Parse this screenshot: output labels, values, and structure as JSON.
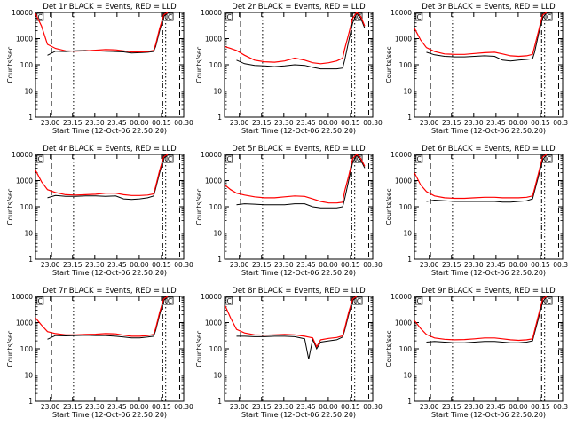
{
  "page": {
    "background": "#ffffff",
    "colors": {
      "events": "#000000",
      "lld": "#ff0000"
    }
  },
  "shared_axes": {
    "ylabel": "Counts/sec",
    "xlabel": "Start Time (12-Oct-06 22:50:20)",
    "y_scale": "log",
    "ylim": [
      1,
      10000
    ],
    "y_tick_labels": [
      "1",
      "10",
      "100",
      "1000",
      "10000"
    ],
    "x_tick_labels": [
      "23:00",
      "23:15",
      "23:30",
      "23:45",
      "00:00",
      "00:15",
      "00:30"
    ]
  },
  "chart_data": [
    {
      "type": "line",
      "title": "Det 1r BLACK = Events, RED = LLD",
      "ylabel": "Counts/sec",
      "xlabel": "Start Time (12-Oct-06 22:50:20)",
      "y_scale": "log",
      "ylim": [
        1,
        10000
      ],
      "x": [
        0,
        3,
        6,
        10,
        15,
        20,
        25,
        30,
        35,
        40,
        44,
        48,
        52,
        56,
        59,
        60,
        62,
        64,
        66
      ],
      "series": [
        {
          "values": [
            null,
            null,
            230,
            330,
            320,
            340,
            350,
            340,
            330,
            320,
            310,
            280,
            290,
            300,
            320,
            500,
            2000,
            7000,
            10000
          ]
        },
        {
          "values": [
            9000,
            3000,
            600,
            420,
            340,
            330,
            340,
            360,
            380,
            370,
            340,
            310,
            310,
            320,
            350,
            600,
            2500,
            8000,
            10000
          ]
        }
      ],
      "annotations": [
        "C",
        "C",
        "C"
      ]
    },
    {
      "type": "line",
      "title": "Det 2r BLACK = Events, RED = LLD",
      "ylabel": "Counts/sec",
      "xlabel": "Start Time (12-Oct-06 22:50:20)",
      "y_scale": "log",
      "ylim": [
        1,
        10000
      ],
      "x": [
        0,
        3,
        6,
        10,
        15,
        20,
        25,
        30,
        35,
        40,
        44,
        48,
        52,
        56,
        59,
        60,
        62,
        64,
        66,
        68,
        70
      ],
      "series": [
        {
          "values": [
            null,
            null,
            150,
            110,
            95,
            90,
            85,
            90,
            100,
            95,
            80,
            70,
            70,
            70,
            75,
            150,
            800,
            4000,
            9000,
            6000,
            2500
          ]
        },
        {
          "values": [
            500,
            420,
            350,
            230,
            150,
            130,
            125,
            140,
            180,
            150,
            120,
            110,
            120,
            140,
            180,
            400,
            1500,
            6000,
            10000,
            7000,
            3000
          ]
        }
      ],
      "annotations": [
        "C",
        "C",
        "C"
      ]
    },
    {
      "type": "line",
      "title": "Det 3r BLACK = Events, RED = LLD",
      "ylabel": "Counts/sec",
      "xlabel": "Start Time (12-Oct-06 22:50:20)",
      "y_scale": "log",
      "ylim": [
        1,
        10000
      ],
      "x": [
        0,
        3,
        6,
        10,
        15,
        20,
        25,
        30,
        35,
        40,
        44,
        48,
        52,
        56,
        59,
        60,
        62,
        64,
        66
      ],
      "series": [
        {
          "values": [
            null,
            null,
            300,
            240,
            210,
            200,
            200,
            210,
            220,
            210,
            150,
            140,
            150,
            160,
            170,
            300,
            1500,
            6000,
            10000
          ]
        },
        {
          "values": [
            2500,
            900,
            450,
            320,
            260,
            250,
            250,
            270,
            290,
            300,
            260,
            220,
            210,
            220,
            250,
            500,
            2000,
            8000,
            10000
          ]
        }
      ],
      "annotations": [
        "C",
        "C",
        "C"
      ]
    },
    {
      "type": "line",
      "title": "Det 4r BLACK = Events, RED = LLD",
      "ylabel": "Counts/sec",
      "xlabel": "Start Time (12-Oct-06 22:50:20)",
      "y_scale": "log",
      "ylim": [
        1,
        10000
      ],
      "x": [
        0,
        3,
        6,
        10,
        15,
        20,
        25,
        30,
        35,
        40,
        44,
        48,
        52,
        56,
        59,
        60,
        62,
        64,
        66
      ],
      "series": [
        {
          "values": [
            null,
            null,
            220,
            270,
            250,
            250,
            260,
            260,
            250,
            260,
            200,
            190,
            200,
            220,
            260,
            500,
            2000,
            7000,
            10000
          ]
        },
        {
          "values": [
            2500,
            900,
            450,
            350,
            290,
            280,
            290,
            300,
            330,
            330,
            290,
            270,
            270,
            280,
            310,
            600,
            2500,
            8000,
            10000
          ]
        }
      ],
      "annotations": [
        "C",
        "C",
        "C"
      ]
    },
    {
      "type": "line",
      "title": "Det 5r BLACK = Events, RED = LLD",
      "ylabel": "Counts/sec",
      "xlabel": "Start Time (12-Oct-06 22:50:20)",
      "y_scale": "log",
      "ylim": [
        1,
        10000
      ],
      "x": [
        0,
        3,
        6,
        10,
        15,
        20,
        25,
        30,
        35,
        40,
        44,
        48,
        52,
        56,
        59,
        60,
        62,
        64,
        66,
        68,
        70
      ],
      "series": [
        {
          "values": [
            null,
            null,
            120,
            130,
            125,
            120,
            120,
            120,
            130,
            130,
            100,
            90,
            90,
            90,
            100,
            200,
            1000,
            5000,
            9000,
            6000,
            3000
          ]
        },
        {
          "values": [
            700,
            450,
            330,
            280,
            240,
            220,
            220,
            240,
            260,
            250,
            200,
            160,
            140,
            140,
            150,
            400,
            1500,
            7000,
            10000,
            7000,
            3500
          ]
        }
      ],
      "annotations": [
        "C",
        "C",
        "C"
      ]
    },
    {
      "type": "line",
      "title": "Det 6r BLACK = Events, RED = LLD",
      "ylabel": "Counts/sec",
      "xlabel": "Start Time (12-Oct-06 22:50:20)",
      "y_scale": "log",
      "ylim": [
        1,
        10000
      ],
      "x": [
        0,
        3,
        6,
        10,
        15,
        20,
        25,
        30,
        35,
        40,
        44,
        48,
        52,
        56,
        59,
        60,
        62,
        64,
        66
      ],
      "series": [
        {
          "values": [
            null,
            null,
            160,
            180,
            170,
            160,
            160,
            160,
            160,
            160,
            150,
            150,
            160,
            170,
            200,
            400,
            1500,
            6000,
            10000
          ]
        },
        {
          "values": [
            2000,
            700,
            380,
            260,
            220,
            210,
            210,
            220,
            230,
            230,
            220,
            220,
            220,
            230,
            260,
            500,
            2000,
            8000,
            10000
          ]
        }
      ],
      "annotations": [
        "C",
        "C",
        "C"
      ]
    },
    {
      "type": "line",
      "title": "Det 7r BLACK = Events, RED = LLD",
      "ylabel": "Counts/sec",
      "xlabel": "Start Time (12-Oct-06 22:50:20)",
      "y_scale": "log",
      "ylim": [
        1,
        10000
      ],
      "x": [
        0,
        3,
        6,
        10,
        15,
        20,
        25,
        30,
        35,
        40,
        44,
        48,
        52,
        56,
        59,
        60,
        62,
        64,
        66
      ],
      "series": [
        {
          "values": [
            null,
            null,
            230,
            320,
            310,
            320,
            330,
            320,
            320,
            300,
            280,
            260,
            260,
            280,
            300,
            500,
            2000,
            7000,
            10000
          ]
        },
        {
          "values": [
            1500,
            800,
            450,
            380,
            340,
            340,
            350,
            360,
            380,
            370,
            330,
            300,
            300,
            320,
            350,
            600,
            2500,
            8000,
            10000
          ]
        }
      ],
      "annotations": [
        "C",
        "C",
        "C"
      ]
    },
    {
      "type": "line",
      "title": "Det 8r BLACK = Events, RED = LLD",
      "ylabel": "Counts/sec",
      "xlabel": "Start Time (12-Oct-06 22:50:20)",
      "y_scale": "log",
      "ylim": [
        1,
        10000
      ],
      "x": [
        0,
        3,
        6,
        10,
        15,
        20,
        25,
        30,
        35,
        40,
        42,
        44,
        46,
        48,
        52,
        56,
        59,
        60,
        62,
        64,
        66
      ],
      "series": [
        {
          "values": [
            null,
            null,
            300,
            300,
            290,
            290,
            300,
            300,
            290,
            240,
            40,
            230,
            100,
            180,
            200,
            220,
            280,
            500,
            2000,
            7000,
            10000
          ]
        },
        {
          "values": [
            5000,
            1500,
            550,
            400,
            340,
            330,
            340,
            350,
            340,
            300,
            280,
            260,
            120,
            220,
            250,
            270,
            310,
            600,
            2500,
            8000,
            10000
          ]
        }
      ],
      "annotations": [
        "C",
        "C",
        "C"
      ]
    },
    {
      "type": "line",
      "title": "Det 9r BLACK = Events, RED = LLD",
      "ylabel": "Counts/sec",
      "xlabel": "Start Time (12-Oct-06 22:50:20)",
      "y_scale": "log",
      "ylim": [
        1,
        10000
      ],
      "x": [
        0,
        3,
        6,
        10,
        15,
        20,
        25,
        30,
        35,
        40,
        44,
        48,
        52,
        56,
        59,
        60,
        62,
        64,
        66
      ],
      "series": [
        {
          "values": [
            null,
            null,
            180,
            190,
            180,
            170,
            170,
            180,
            190,
            190,
            180,
            170,
            170,
            180,
            200,
            400,
            1500,
            6000,
            10000
          ]
        },
        {
          "values": [
            1200,
            600,
            350,
            260,
            230,
            220,
            225,
            240,
            260,
            260,
            240,
            220,
            210,
            220,
            240,
            500,
            2000,
            8000,
            10000
          ]
        }
      ],
      "annotations": [
        "C",
        "C",
        "C"
      ]
    }
  ]
}
